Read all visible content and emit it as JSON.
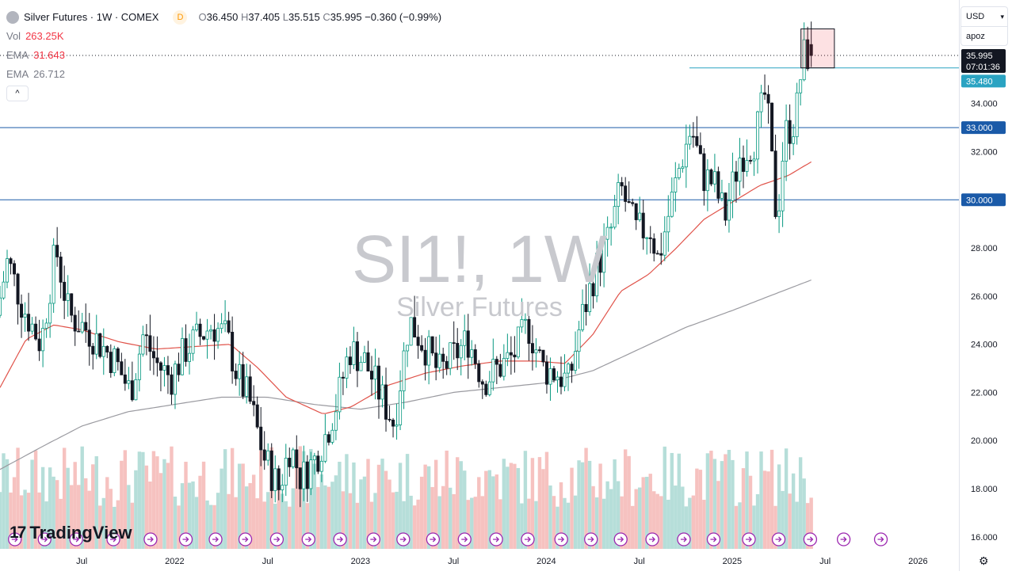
{
  "header": {
    "title": "Silver Futures · 1W · COMEX",
    "badge": "D",
    "open_label": "O",
    "open": "36.450",
    "high_label": "H",
    "high": "37.405",
    "low_label": "L",
    "low": "35.515",
    "close_label": "C",
    "close": "35.995",
    "change": "−0.360 (−0.99%)"
  },
  "indicators": {
    "vol_label": "Vol",
    "vol_value": "263.25K",
    "ema1_label": "EMA",
    "ema1_value": "31.643",
    "ema2_label": "EMA",
    "ema2_value": "26.712"
  },
  "controls": {
    "currency": "USD",
    "scale_mode": "apoz",
    "collapse": "^"
  },
  "watermark": {
    "symbol": "SI1!, 1W",
    "name": "Silver Futures"
  },
  "branding": {
    "logo_text": "TradingView",
    "logo_mark": "17"
  },
  "colors": {
    "up": "#089981",
    "down": "#131722",
    "ema1": "#e0534a",
    "ema2": "#9a9aa0",
    "hline": "#1a5aa8",
    "resistance": "#2aa3c2",
    "box_fill": "rgba(242,54,69,0.15)",
    "box_stroke": "#131722",
    "vol_up": "#a9d8d2",
    "vol_down": "#f4b7b5",
    "event": "#9c27b0"
  },
  "chart_data": {
    "type": "candlestick",
    "ylim": [
      15.5,
      38.3
    ],
    "yticks": [
      "16.000",
      "18.000",
      "20.000",
      "22.000",
      "24.000",
      "26.000",
      "28.000",
      "30.000",
      "32.000",
      "34.000"
    ],
    "x_labels": [
      "Jul",
      "2022",
      "Jul",
      "2023",
      "Jul",
      "2024",
      "Jul",
      "2025",
      "Jul",
      "2026"
    ],
    "x_label_dates": [
      2021.5,
      2022.0,
      2022.5,
      2023.0,
      2023.5,
      2024.0,
      2024.5,
      2025.0,
      2025.5,
      2026.0
    ],
    "xlim": [
      2021.06,
      2026.22
    ],
    "price_lines": [
      {
        "label": "30.000",
        "value": 30.0,
        "kind": "horizontal"
      },
      {
        "label": "33.000",
        "value": 33.0,
        "kind": "horizontal"
      }
    ],
    "resistance_line": {
      "label": "35.480",
      "value": 35.48,
      "from": 2024.77
    },
    "last_price": {
      "label": "35.995",
      "value": 35.995,
      "countdown": "07:01:36"
    },
    "highlight_box": {
      "x_from": 2025.37,
      "x_to": 2025.55,
      "y_from": 35.48,
      "y_to": 37.1
    },
    "price_anchors": [
      [
        2021.06,
        25.2
      ],
      [
        2021.12,
        27.5
      ],
      [
        2021.2,
        25.6
      ],
      [
        2021.3,
        24.0
      ],
      [
        2021.38,
        28.0
      ],
      [
        2021.45,
        25.2
      ],
      [
        2021.55,
        24.6
      ],
      [
        2021.62,
        24.0
      ],
      [
        2021.7,
        23.3
      ],
      [
        2021.78,
        22.0
      ],
      [
        2021.85,
        24.4
      ],
      [
        2021.92,
        23.2
      ],
      [
        2022.0,
        22.6
      ],
      [
        2022.08,
        23.8
      ],
      [
        2022.15,
        24.3
      ],
      [
        2022.22,
        24.8
      ],
      [
        2022.3,
        24.3
      ],
      [
        2022.36,
        22.6
      ],
      [
        2022.42,
        21.7
      ],
      [
        2022.5,
        19.3
      ],
      [
        2022.58,
        18.0
      ],
      [
        2022.64,
        19.8
      ],
      [
        2022.7,
        18.4
      ],
      [
        2022.78,
        19.3
      ],
      [
        2022.84,
        20.4
      ],
      [
        2022.9,
        21.8
      ],
      [
        2022.96,
        23.8
      ],
      [
        2023.04,
        23.3
      ],
      [
        2023.12,
        22.0
      ],
      [
        2023.2,
        20.7
      ],
      [
        2023.28,
        25.0
      ],
      [
        2023.36,
        24.0
      ],
      [
        2023.44,
        22.8
      ],
      [
        2023.52,
        23.5
      ],
      [
        2023.6,
        24.2
      ],
      [
        2023.68,
        22.5
      ],
      [
        2023.76,
        23.0
      ],
      [
        2023.84,
        23.5
      ],
      [
        2023.92,
        24.8
      ],
      [
        2024.0,
        23.0
      ],
      [
        2024.08,
        22.8
      ],
      [
        2024.14,
        22.4
      ],
      [
        2024.2,
        24.8
      ],
      [
        2024.28,
        27.0
      ],
      [
        2024.36,
        28.5
      ],
      [
        2024.42,
        30.5
      ],
      [
        2024.5,
        28.7
      ],
      [
        2024.58,
        28.8
      ],
      [
        2024.62,
        27.5
      ],
      [
        2024.68,
        29.5
      ],
      [
        2024.74,
        31.5
      ],
      [
        2024.8,
        33.0
      ],
      [
        2024.86,
        31.0
      ],
      [
        2024.92,
        30.7
      ],
      [
        2024.98,
        29.3
      ],
      [
        2025.06,
        31.8
      ],
      [
        2025.14,
        32.5
      ],
      [
        2025.2,
        34.5
      ],
      [
        2025.26,
        29.0
      ],
      [
        2025.3,
        32.7
      ],
      [
        2025.36,
        33.3
      ],
      [
        2025.4,
        36.0
      ],
      [
        2025.44,
        35.995
      ]
    ],
    "ema1_anchors": [
      [
        2021.06,
        22.2
      ],
      [
        2021.2,
        24.2
      ],
      [
        2021.35,
        24.8
      ],
      [
        2021.5,
        24.6
      ],
      [
        2021.7,
        24.1
      ],
      [
        2021.9,
        23.8
      ],
      [
        2022.1,
        23.9
      ],
      [
        2022.3,
        24.0
      ],
      [
        2022.45,
        23.0
      ],
      [
        2022.6,
        21.8
      ],
      [
        2022.8,
        21.1
      ],
      [
        2022.95,
        21.4
      ],
      [
        2023.15,
        22.3
      ],
      [
        2023.35,
        22.8
      ],
      [
        2023.55,
        23.1
      ],
      [
        2023.75,
        23.3
      ],
      [
        2023.95,
        23.3
      ],
      [
        2024.1,
        23.2
      ],
      [
        2024.25,
        24.4
      ],
      [
        2024.4,
        26.2
      ],
      [
        2024.55,
        26.9
      ],
      [
        2024.7,
        28.0
      ],
      [
        2024.85,
        29.2
      ],
      [
        2025.0,
        29.9
      ],
      [
        2025.15,
        30.6
      ],
      [
        2025.3,
        31.0
      ],
      [
        2025.44,
        31.643
      ]
    ],
    "ema2_anchors": [
      [
        2021.06,
        18.8
      ],
      [
        2021.3,
        19.8
      ],
      [
        2021.5,
        20.6
      ],
      [
        2021.75,
        21.2
      ],
      [
        2022.0,
        21.5
      ],
      [
        2022.25,
        21.8
      ],
      [
        2022.5,
        21.8
      ],
      [
        2022.75,
        21.5
      ],
      [
        2023.0,
        21.3
      ],
      [
        2023.25,
        21.6
      ],
      [
        2023.5,
        22.0
      ],
      [
        2023.75,
        22.2
      ],
      [
        2024.0,
        22.4
      ],
      [
        2024.25,
        22.9
      ],
      [
        2024.5,
        23.8
      ],
      [
        2024.75,
        24.7
      ],
      [
        2025.0,
        25.4
      ],
      [
        2025.2,
        26.0
      ],
      [
        2025.44,
        26.712
      ]
    ],
    "events_x": [
      2021.14,
      2021.3,
      2021.47,
      2021.67,
      2021.87,
      2022.06,
      2022.22,
      2022.38,
      2022.55,
      2022.72,
      2022.89,
      2023.07,
      2023.23,
      2023.39,
      2023.56,
      2023.73,
      2023.9,
      2024.08,
      2024.24,
      2024.4,
      2024.57,
      2024.74,
      2024.9,
      2025.09,
      2025.25,
      2025.42,
      2025.6,
      2025.8
    ]
  }
}
